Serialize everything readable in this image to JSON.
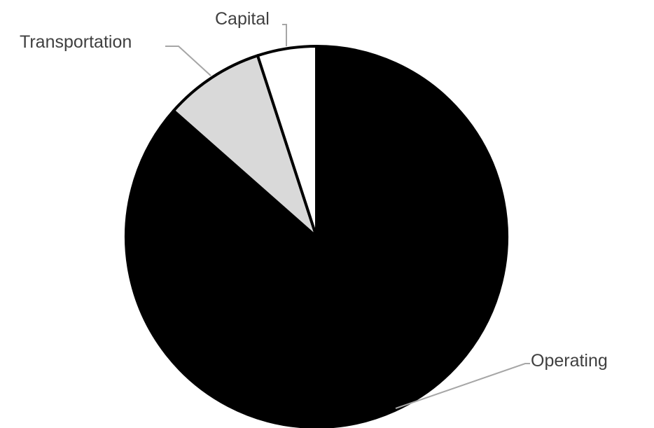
{
  "chart_data": {
    "type": "pie",
    "title": "",
    "start_angle_deg": 0,
    "direction": "clockwise",
    "legend": "none",
    "labels_outside_with_leaders": true,
    "slices": [
      {
        "label": "Operating",
        "value": 86.5,
        "color": "#000000"
      },
      {
        "label": "Transportation",
        "value": 8.5,
        "color": "#d9d9d9"
      },
      {
        "label": "Capital",
        "value": 5.0,
        "color": "#ffffff"
      }
    ],
    "slice_border_color": "#000000",
    "leader_color": "#a6a6a6",
    "label_color": "#404040"
  }
}
